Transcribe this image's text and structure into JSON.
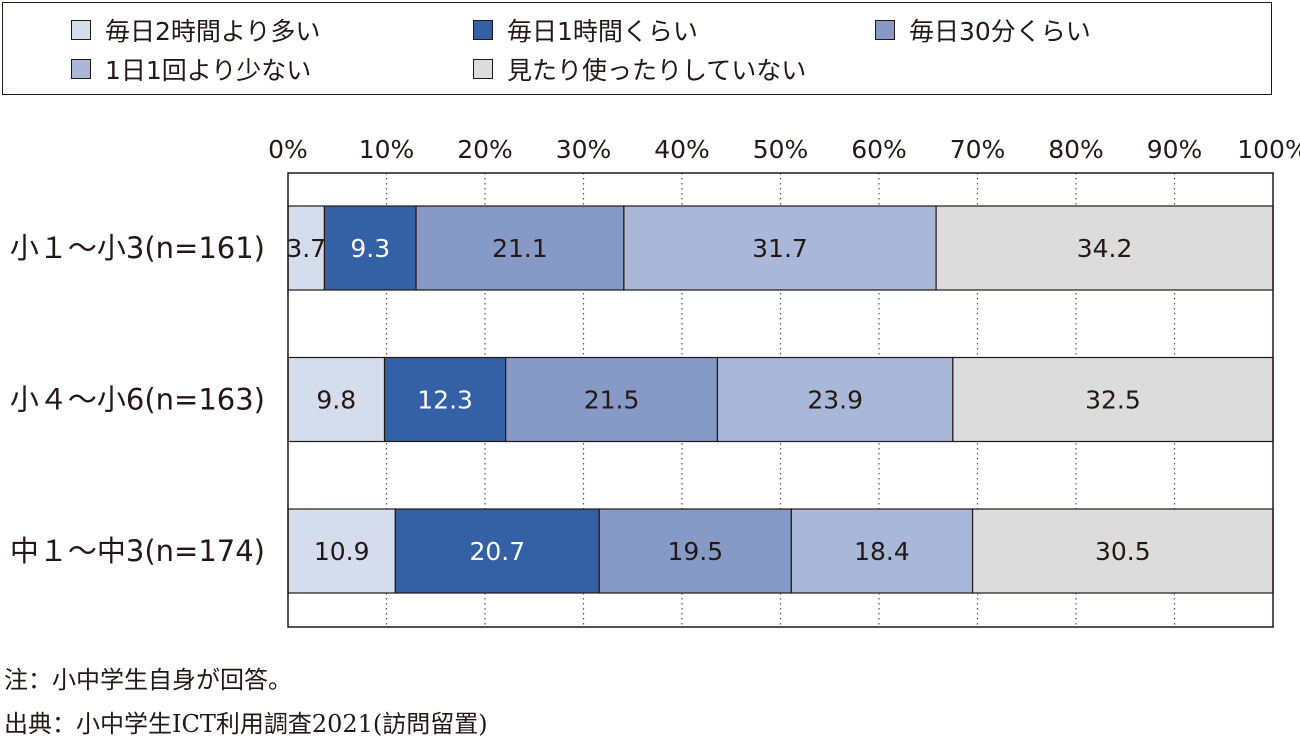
{
  "chart_data": {
    "type": "bar",
    "orientation": "horizontal",
    "stacked": true,
    "categories": [
      "小１～小3(n=161)",
      "小４～小6(n=163)",
      "中１～中3(n=174)"
    ],
    "series": [
      {
        "name": "毎日2時間より多い",
        "color": "#d5dcec",
        "values": [
          3.7,
          9.8,
          10.9
        ]
      },
      {
        "name": "毎日1時間くらい",
        "color": "#3461a6",
        "values": [
          9.3,
          12.3,
          20.7
        ]
      },
      {
        "name": "毎日30分くらい",
        "color": "#8799c6",
        "values": [
          21.1,
          21.5,
          19.5
        ]
      },
      {
        "name": "1日1回より少ない",
        "color": "#a9b7d9",
        "values": [
          31.7,
          23.9,
          18.4
        ]
      },
      {
        "name": "見たり使ったりしていない",
        "color": "#dcdcdc",
        "values": [
          34.2,
          32.5,
          30.5
        ]
      }
    ],
    "xlim": [
      0,
      100
    ],
    "xticks": [
      "0%",
      "10%",
      "20%",
      "30%",
      "40%",
      "50%",
      "60%",
      "70%",
      "80%",
      "90%",
      "100%"
    ],
    "grid": true,
    "legend_position": "top"
  },
  "notes": [
    "注：小中学生自身が回答。",
    "出典：小中学生ICT利用調査2021(訪問留置)"
  ]
}
